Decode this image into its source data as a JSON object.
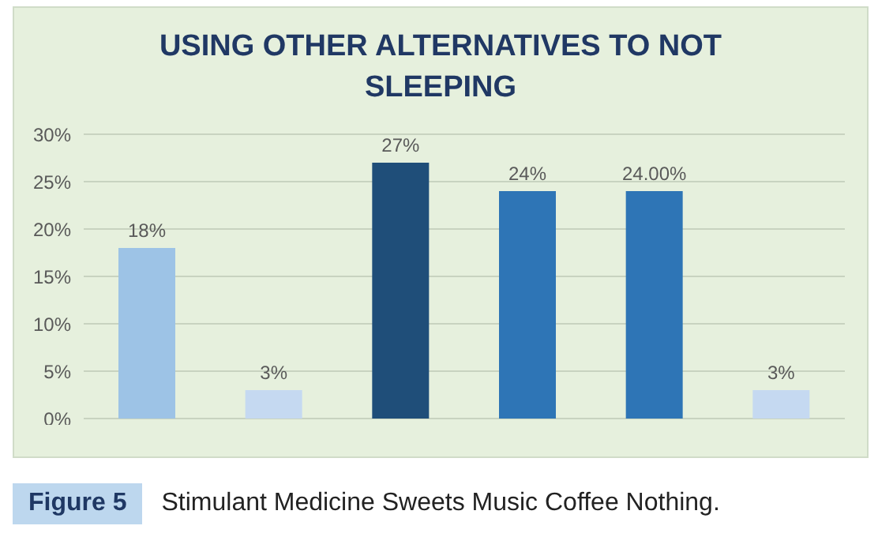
{
  "chart_data": {
    "type": "bar",
    "title": "USING OTHER ALTERNATIVES TO NOT SLEEPING",
    "categories": [
      null,
      null,
      null,
      null,
      null,
      null
    ],
    "values": [
      18,
      3,
      27,
      24,
      24,
      3
    ],
    "colors": [
      "#9dc3e6",
      "#c5d9f1",
      "#1f4e79",
      "#2e75b6",
      "#2e75b6",
      "#c5d9f1"
    ],
    "value_labels": [
      "18%",
      "3%",
      "27%",
      "24%",
      "24.00%",
      "3%"
    ],
    "ylim": [
      0,
      30
    ],
    "yticks": [
      {
        "value": 0,
        "label": "0%"
      },
      {
        "value": 5,
        "label": "5%"
      },
      {
        "value": 10,
        "label": "10%"
      },
      {
        "value": 15,
        "label": "15%"
      },
      {
        "value": 20,
        "label": "20%"
      },
      {
        "value": 25,
        "label": "25%"
      },
      {
        "value": 30,
        "label": "30%"
      }
    ],
    "grid": "y",
    "tick_labels": "y",
    "legend": false,
    "annotations": [
      "Figure 5",
      "Stimulant Medicine Sweets Music Coffee Nothing."
    ]
  }
}
